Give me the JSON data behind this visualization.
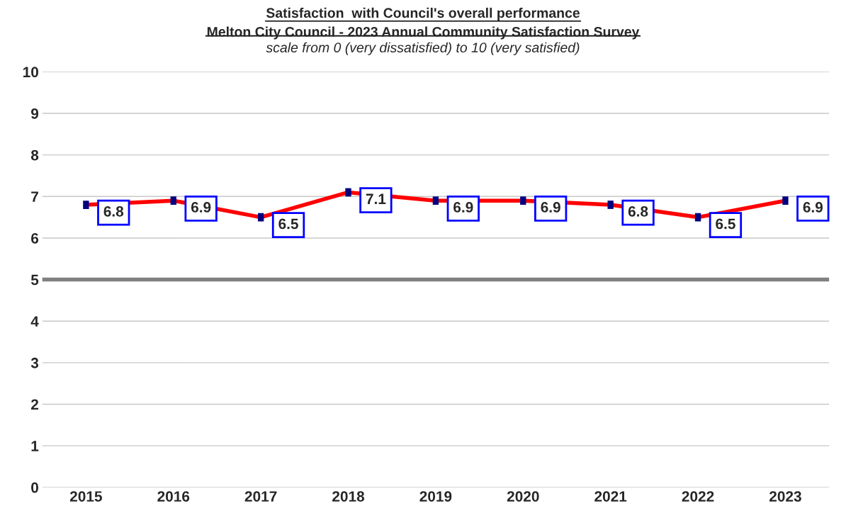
{
  "chart_data": {
    "type": "line",
    "title": "Satisfaction  with Council's overall performance\nMelton City Council - 2023 Annual Community Satisfaction Survey",
    "subtitle": "scale from 0 (very dissatisfied) to 10 (very satisfied)",
    "categories": [
      "2015",
      "2016",
      "2017",
      "2018",
      "2019",
      "2020",
      "2021",
      "2022",
      "2023"
    ],
    "series": [
      {
        "color": "#ff0000",
        "values": [
          6.8,
          6.9,
          6.5,
          7.1,
          6.9,
          6.9,
          6.8,
          6.5,
          6.9
        ],
        "errors": [
          0.1,
          0.1,
          0.1,
          0.1,
          0.1,
          0.1,
          0.1,
          0.1,
          0.1
        ]
      }
    ],
    "data_labels": true,
    "ylim": [
      0,
      10
    ],
    "yticks": [
      0,
      1,
      2,
      3,
      4,
      5,
      6,
      7,
      8,
      9,
      10
    ],
    "grid": "y",
    "legend": false,
    "marker": "none",
    "line_style": "solid",
    "ref_lines": [
      {
        "axis": "y",
        "value": 5,
        "label": null,
        "color": "#808080"
      }
    ]
  }
}
